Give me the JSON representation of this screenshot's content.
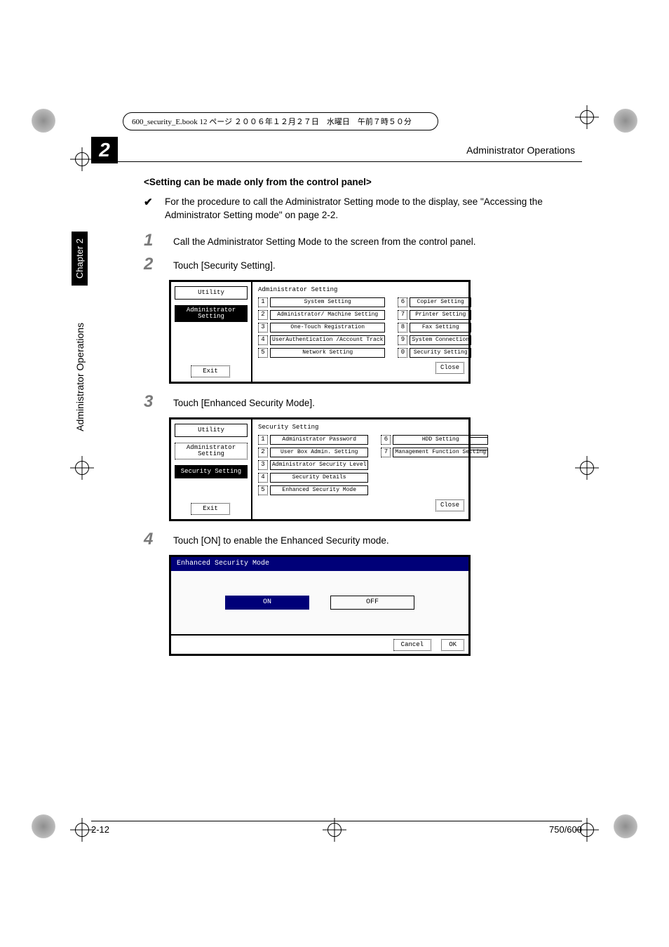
{
  "meta_line": "600_security_E.book  12 ページ  ２００６年１２月２７日　水曜日　午前７時５０分",
  "chapter_big": "2",
  "header_right": "Administrator Operations",
  "side_chapter": "Chapter 2",
  "side_ops": "Administrator Operations",
  "section_title": "<Setting can be made only from the control panel>",
  "check_mark": "✔",
  "check_text": "For the procedure to call the Administrator Setting mode to the display, see \"Accessing the Administrator Setting mode\" on page 2-2.",
  "steps": {
    "s1": {
      "num": "1",
      "text": "Call the Administrator Setting Mode to the screen from the control panel."
    },
    "s2": {
      "num": "2",
      "text": "Touch [Security Setting]."
    },
    "s3": {
      "num": "3",
      "text": "Touch [Enhanced Security Mode]."
    },
    "s4": {
      "num": "4",
      "text": "Touch [ON] to enable the Enhanced Security mode."
    }
  },
  "lcd1": {
    "crumb1": "Utility",
    "crumb2": "Administrator\nSetting",
    "exit": "Exit",
    "title": "Administrator\nSetting",
    "left": [
      {
        "n": "1",
        "t": "System Setting"
      },
      {
        "n": "2",
        "t": "Administrator/\nMachine Setting"
      },
      {
        "n": "3",
        "t": "One-Touch\nRegistration"
      },
      {
        "n": "4",
        "t": "UserAuthentication\n/Account Track"
      },
      {
        "n": "5",
        "t": "Network Setting"
      }
    ],
    "right": [
      {
        "n": "6",
        "t": "Copier Setting"
      },
      {
        "n": "7",
        "t": "Printer Setting"
      },
      {
        "n": "8",
        "t": "Fax Setting"
      },
      {
        "n": "9",
        "t": "System Connection"
      },
      {
        "n": "0",
        "t": "Security Setting"
      }
    ],
    "close": "Close"
  },
  "lcd2": {
    "crumb1": "Utility",
    "crumb2": "Administrator\nSetting",
    "crumb3": "Security Setting",
    "exit": "Exit",
    "title": "Security Setting",
    "left": [
      {
        "n": "1",
        "t": "Administrator\nPassword"
      },
      {
        "n": "2",
        "t": "User Box\nAdmin. Setting"
      },
      {
        "n": "3",
        "t": "Administrator\nSecurity Level"
      },
      {
        "n": "4",
        "t": "Security Details"
      },
      {
        "n": "5",
        "t": "Enhanced Security\nMode"
      }
    ],
    "right": [
      {
        "n": "6",
        "t": "HDD Setting"
      },
      {
        "n": "7",
        "t": "Management\nFunction Setting"
      }
    ],
    "close": "Close"
  },
  "esm": {
    "title": "Enhanced Security Mode",
    "on": "ON",
    "off": "OFF",
    "cancel": "Cancel",
    "ok": "OK"
  },
  "footer_left": "2-12",
  "footer_right": "750/600"
}
